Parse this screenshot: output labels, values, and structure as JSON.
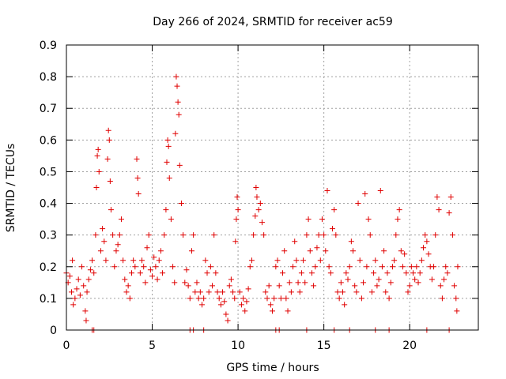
{
  "chart_data": {
    "type": "scatter",
    "title": "Day 266 of 2024, SRMTID for receiver ac59",
    "xlabel": "GPS time / hours",
    "ylabel": "SRMTID / TECUs",
    "xlim": [
      0,
      24
    ],
    "ylim": [
      0,
      0.9
    ],
    "x_ticks": [
      0,
      5,
      10,
      15,
      20
    ],
    "x_tick_labels": [
      "0",
      "5",
      "10",
      "15",
      "20"
    ],
    "y_ticks": [
      0,
      0.1,
      0.2,
      0.3,
      0.4,
      0.5,
      0.6,
      0.7,
      0.8,
      0.9
    ],
    "y_tick_labels": [
      "0",
      "0.1",
      "0.2",
      "0.3",
      "0.4",
      "0.5",
      "0.6",
      "0.7",
      "0.8",
      "0.9"
    ],
    "grid": true,
    "marker": "plus",
    "color": "#e00000",
    "series": [
      {
        "name": "SRMTID",
        "points": [
          [
            0.0,
            0.18
          ],
          [
            0.1,
            0.15
          ],
          [
            0.2,
            0.17
          ],
          [
            0.3,
            0.12
          ],
          [
            0.35,
            0.22
          ],
          [
            0.4,
            0.08
          ],
          [
            0.5,
            0.1
          ],
          [
            0.6,
            0.13
          ],
          [
            0.7,
            0.16
          ],
          [
            0.8,
            0.11
          ],
          [
            0.9,
            0.2
          ],
          [
            1.0,
            0.14
          ],
          [
            1.1,
            0.06
          ],
          [
            1.15,
            0.03
          ],
          [
            1.2,
            0.12
          ],
          [
            1.3,
            0.16
          ],
          [
            1.4,
            0.19
          ],
          [
            1.5,
            0.22
          ],
          [
            1.6,
            0.18
          ],
          [
            1.7,
            0.3
          ],
          [
            1.75,
            0.45
          ],
          [
            1.8,
            0.55
          ],
          [
            1.85,
            0.57
          ],
          [
            1.9,
            0.5
          ],
          [
            2.0,
            0.25
          ],
          [
            2.1,
            0.32
          ],
          [
            2.2,
            0.28
          ],
          [
            2.3,
            0.22
          ],
          [
            2.4,
            0.54
          ],
          [
            2.45,
            0.63
          ],
          [
            2.5,
            0.6
          ],
          [
            2.55,
            0.47
          ],
          [
            2.6,
            0.38
          ],
          [
            2.7,
            0.3
          ],
          [
            2.8,
            0.2
          ],
          [
            2.9,
            0.25
          ],
          [
            3.0,
            0.27
          ],
          [
            3.1,
            0.3
          ],
          [
            3.2,
            0.35
          ],
          [
            3.3,
            0.22
          ],
          [
            3.4,
            0.16
          ],
          [
            3.5,
            0.12
          ],
          [
            3.6,
            0.14
          ],
          [
            3.7,
            0.1
          ],
          [
            3.8,
            0.18
          ],
          [
            3.9,
            0.22
          ],
          [
            4.0,
            0.2
          ],
          [
            4.1,
            0.54
          ],
          [
            4.15,
            0.48
          ],
          [
            4.2,
            0.43
          ],
          [
            4.3,
            0.18
          ],
          [
            4.4,
            0.22
          ],
          [
            4.5,
            0.2
          ],
          [
            4.6,
            0.15
          ],
          [
            4.7,
            0.26
          ],
          [
            4.8,
            0.3
          ],
          [
            4.9,
            0.19
          ],
          [
            5.0,
            0.17
          ],
          [
            5.1,
            0.23
          ],
          [
            5.2,
            0.2
          ],
          [
            5.3,
            0.16
          ],
          [
            5.4,
            0.22
          ],
          [
            5.5,
            0.25
          ],
          [
            5.6,
            0.18
          ],
          [
            5.7,
            0.3
          ],
          [
            5.8,
            0.38
          ],
          [
            5.85,
            0.53
          ],
          [
            5.9,
            0.6
          ],
          [
            5.95,
            0.58
          ],
          [
            6.0,
            0.48
          ],
          [
            6.1,
            0.35
          ],
          [
            6.2,
            0.2
          ],
          [
            6.3,
            0.15
          ],
          [
            6.35,
            0.62
          ],
          [
            6.4,
            0.8
          ],
          [
            6.45,
            0.77
          ],
          [
            6.5,
            0.72
          ],
          [
            6.55,
            0.68
          ],
          [
            6.6,
            0.52
          ],
          [
            6.7,
            0.4
          ],
          [
            6.8,
            0.3
          ],
          [
            6.9,
            0.15
          ],
          [
            7.0,
            0.19
          ],
          [
            7.1,
            0.14
          ],
          [
            7.2,
            0.1
          ],
          [
            7.3,
            0.25
          ],
          [
            7.4,
            0.3
          ],
          [
            7.5,
            0.12
          ],
          [
            7.6,
            0.15
          ],
          [
            7.7,
            0.1
          ],
          [
            7.8,
            0.12
          ],
          [
            7.9,
            0.08
          ],
          [
            8.0,
            0.1
          ],
          [
            8.1,
            0.22
          ],
          [
            8.2,
            0.18
          ],
          [
            8.3,
            0.12
          ],
          [
            8.4,
            0.2
          ],
          [
            8.5,
            0.14
          ],
          [
            8.6,
            0.3
          ],
          [
            8.7,
            0.18
          ],
          [
            8.8,
            0.12
          ],
          [
            8.9,
            0.1
          ],
          [
            9.0,
            0.08
          ],
          [
            9.1,
            0.12
          ],
          [
            9.2,
            0.09
          ],
          [
            9.3,
            0.05
          ],
          [
            9.4,
            0.03
          ],
          [
            9.5,
            0.14
          ],
          [
            9.6,
            0.16
          ],
          [
            9.7,
            0.12
          ],
          [
            9.8,
            0.1
          ],
          [
            9.85,
            0.28
          ],
          [
            9.9,
            0.35
          ],
          [
            9.95,
            0.42
          ],
          [
            10.0,
            0.38
          ],
          [
            10.1,
            0.12
          ],
          [
            10.2,
            0.08
          ],
          [
            10.3,
            0.1
          ],
          [
            10.4,
            0.06
          ],
          [
            10.5,
            0.09
          ],
          [
            10.6,
            0.13
          ],
          [
            10.7,
            0.2
          ],
          [
            10.8,
            0.22
          ],
          [
            10.9,
            0.3
          ],
          [
            11.0,
            0.36
          ],
          [
            11.05,
            0.45
          ],
          [
            11.1,
            0.42
          ],
          [
            11.2,
            0.38
          ],
          [
            11.3,
            0.4
          ],
          [
            11.4,
            0.34
          ],
          [
            11.5,
            0.3
          ],
          [
            11.6,
            0.12
          ],
          [
            11.7,
            0.1
          ],
          [
            11.8,
            0.14
          ],
          [
            11.9,
            0.08
          ],
          [
            12.0,
            0.06
          ],
          [
            12.1,
            0.1
          ],
          [
            12.2,
            0.2
          ],
          [
            12.3,
            0.22
          ],
          [
            12.4,
            0.14
          ],
          [
            12.5,
            0.1
          ],
          [
            12.6,
            0.18
          ],
          [
            12.7,
            0.25
          ],
          [
            12.8,
            0.1
          ],
          [
            12.9,
            0.06
          ],
          [
            13.0,
            0.15
          ],
          [
            13.1,
            0.12
          ],
          [
            13.2,
            0.2
          ],
          [
            13.3,
            0.28
          ],
          [
            13.4,
            0.22
          ],
          [
            13.5,
            0.15
          ],
          [
            13.6,
            0.12
          ],
          [
            13.7,
            0.18
          ],
          [
            13.8,
            0.22
          ],
          [
            13.9,
            0.15
          ],
          [
            14.0,
            0.3
          ],
          [
            14.1,
            0.35
          ],
          [
            14.2,
            0.25
          ],
          [
            14.3,
            0.18
          ],
          [
            14.4,
            0.14
          ],
          [
            14.5,
            0.2
          ],
          [
            14.6,
            0.26
          ],
          [
            14.7,
            0.3
          ],
          [
            14.8,
            0.22
          ],
          [
            14.9,
            0.35
          ],
          [
            15.0,
            0.3
          ],
          [
            15.1,
            0.25
          ],
          [
            15.2,
            0.44
          ],
          [
            15.3,
            0.2
          ],
          [
            15.4,
            0.18
          ],
          [
            15.5,
            0.32
          ],
          [
            15.6,
            0.38
          ],
          [
            15.7,
            0.3
          ],
          [
            15.8,
            0.12
          ],
          [
            15.9,
            0.1
          ],
          [
            16.0,
            0.15
          ],
          [
            16.1,
            0.12
          ],
          [
            16.2,
            0.08
          ],
          [
            16.3,
            0.18
          ],
          [
            16.4,
            0.16
          ],
          [
            16.5,
            0.2
          ],
          [
            16.6,
            0.28
          ],
          [
            16.7,
            0.25
          ],
          [
            16.8,
            0.14
          ],
          [
            16.9,
            0.12
          ],
          [
            17.0,
            0.4
          ],
          [
            17.1,
            0.22
          ],
          [
            17.2,
            0.1
          ],
          [
            17.3,
            0.15
          ],
          [
            17.4,
            0.43
          ],
          [
            17.5,
            0.2
          ],
          [
            17.6,
            0.35
          ],
          [
            17.7,
            0.3
          ],
          [
            17.8,
            0.12
          ],
          [
            17.9,
            0.18
          ],
          [
            18.0,
            0.22
          ],
          [
            18.1,
            0.14
          ],
          [
            18.2,
            0.16
          ],
          [
            18.3,
            0.44
          ],
          [
            18.4,
            0.2
          ],
          [
            18.5,
            0.25
          ],
          [
            18.6,
            0.12
          ],
          [
            18.7,
            0.18
          ],
          [
            18.8,
            0.1
          ],
          [
            18.9,
            0.15
          ],
          [
            19.0,
            0.2
          ],
          [
            19.1,
            0.22
          ],
          [
            19.2,
            0.3
          ],
          [
            19.3,
            0.35
          ],
          [
            19.4,
            0.38
          ],
          [
            19.5,
            0.25
          ],
          [
            19.6,
            0.2
          ],
          [
            19.7,
            0.24
          ],
          [
            19.8,
            0.18
          ],
          [
            19.9,
            0.12
          ],
          [
            20.0,
            0.14
          ],
          [
            20.1,
            0.2
          ],
          [
            20.2,
            0.18
          ],
          [
            20.3,
            0.16
          ],
          [
            20.4,
            0.2
          ],
          [
            20.5,
            0.15
          ],
          [
            20.6,
            0.18
          ],
          [
            20.7,
            0.22
          ],
          [
            20.8,
            0.26
          ],
          [
            20.9,
            0.3
          ],
          [
            21.0,
            0.28
          ],
          [
            21.1,
            0.24
          ],
          [
            21.2,
            0.2
          ],
          [
            21.3,
            0.16
          ],
          [
            21.4,
            0.2
          ],
          [
            21.5,
            0.3
          ],
          [
            21.6,
            0.42
          ],
          [
            21.7,
            0.38
          ],
          [
            21.8,
            0.14
          ],
          [
            21.9,
            0.1
          ],
          [
            22.0,
            0.16
          ],
          [
            22.1,
            0.2
          ],
          [
            22.2,
            0.18
          ],
          [
            22.3,
            0.37
          ],
          [
            22.4,
            0.42
          ],
          [
            22.5,
            0.3
          ],
          [
            22.6,
            0.14
          ],
          [
            22.7,
            0.1
          ],
          [
            22.75,
            0.06
          ],
          [
            22.8,
            0.2
          ]
        ]
      }
    ],
    "zero_markers_x": [
      1.5,
      1.6,
      7.2,
      7.4,
      8.0,
      12.2,
      12.4,
      14.0,
      15.6,
      16.5,
      18.0,
      18.8,
      21.0,
      22.3
    ]
  }
}
